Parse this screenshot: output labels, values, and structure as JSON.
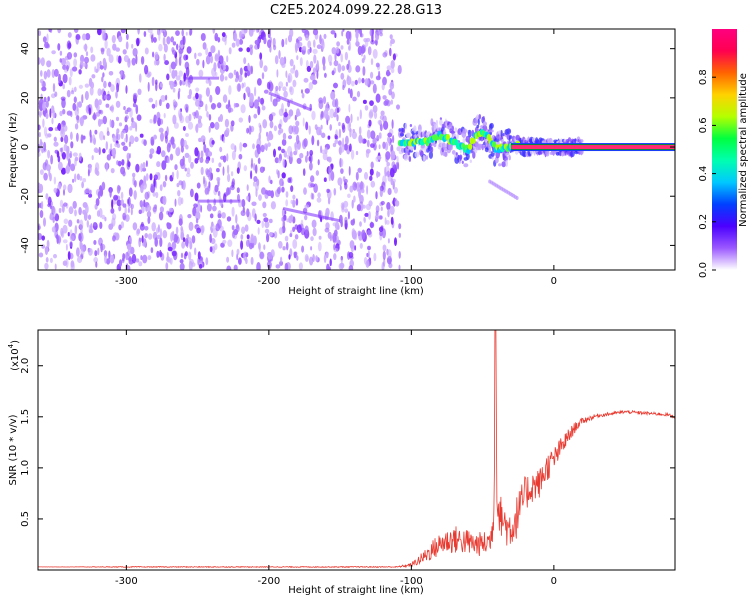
{
  "title": "C2E5.2024.099.22.28.G13",
  "chart_data": [
    {
      "type": "heatmap",
      "panel": "spectrogram",
      "title": "C2E5.2024.099.22.28.G13",
      "xlabel": "Height of straight line (km)",
      "ylabel": "Frequency (Hz)",
      "xlim": [
        -362,
        85
      ],
      "ylim": [
        -50,
        48
      ],
      "xticks": [
        -300,
        -200,
        -100,
        0
      ],
      "yticks": [
        -40,
        -20,
        0,
        20,
        40
      ],
      "xtick_labels": [
        "-300",
        "-200",
        "-100",
        "0"
      ],
      "ytick_labels": [
        "-40",
        "-20",
        "0",
        "20",
        "40"
      ],
      "noise_region_x": [
        -362,
        -108
      ],
      "signal": {
        "x": [
          -108,
          -100,
          -90,
          -80,
          -70,
          -60,
          -55,
          -50,
          -45,
          -40,
          -35,
          -30,
          -25,
          -20,
          -10,
          0,
          10,
          85
        ],
        "y": [
          2,
          2,
          2,
          5,
          2,
          -1,
          5,
          6,
          3,
          -1,
          0,
          0,
          1,
          0,
          0,
          0,
          0,
          0
        ]
      },
      "colorbar": {
        "label": "Normalized spectral amplitude",
        "range": [
          0,
          1
        ],
        "ticks": [
          0.0,
          0.2,
          0.4,
          0.6,
          0.8
        ],
        "tick_labels": [
          "0.0",
          "0.2",
          "0.4",
          "0.6",
          "0.8"
        ],
        "colors": [
          "#ffffff",
          "#9b59ff",
          "#4b00ff",
          "#0040ff",
          "#00c8ff",
          "#00ffb0",
          "#00ff40",
          "#b4ff00",
          "#ffd200",
          "#ff6400",
          "#ff0050",
          "#ff0080"
        ]
      },
      "colors": {
        "noise": "#7a28ff",
        "noise_light": "#c9a8ff",
        "core": "#ff2d6f",
        "core_edge": "#0a8a3a"
      }
    },
    {
      "type": "line",
      "panel": "snr",
      "xlabel": "Height of straight line (km)",
      "ylabel": "SNR (10 * v/v)",
      "y_scale_label": "(x10",
      "y_scale_exponent": "4",
      "xlim": [
        -362,
        85
      ],
      "ylim": [
        0,
        2.35
      ],
      "xticks": [
        -300,
        -200,
        -100,
        0
      ],
      "yticks": [
        0.5,
        1.0,
        1.5,
        2.0
      ],
      "xtick_labels": [
        "-300",
        "-200",
        "-100",
        "0"
      ],
      "ytick_labels": [
        "0.5",
        "1.0",
        "1.5",
        "2.0"
      ],
      "series": [
        {
          "name": "SNR",
          "color": "#e83a30",
          "x": [
            -362,
            -300,
            -200,
            -110,
            -100,
            -92,
            -85,
            -78,
            -70,
            -62,
            -55,
            -48,
            -44,
            -42,
            -41,
            -40,
            -39,
            -38,
            -36,
            -32,
            -28,
            -24,
            -20,
            -15,
            -10,
            -5,
            0,
            5,
            10,
            15,
            20,
            30,
            40,
            50,
            60,
            70,
            80,
            85
          ],
          "y": [
            0.03,
            0.03,
            0.03,
            0.03,
            0.05,
            0.12,
            0.2,
            0.27,
            0.3,
            0.28,
            0.25,
            0.26,
            0.3,
            0.6,
            2.35,
            0.85,
            0.6,
            0.55,
            0.5,
            0.4,
            0.45,
            0.6,
            0.75,
            0.82,
            0.85,
            1.0,
            1.08,
            1.2,
            1.3,
            1.4,
            1.46,
            1.51,
            1.53,
            1.55,
            1.54,
            1.53,
            1.52,
            1.5
          ]
        }
      ],
      "noise_amplitude": [
        0.0,
        0.004,
        0.004,
        0.005,
        0.02,
        0.06,
        0.1,
        0.12,
        0.14,
        0.13,
        0.12,
        0.12,
        0.15,
        0.2,
        0.0,
        0.2,
        0.2,
        0.2,
        0.2,
        0.2,
        0.22,
        0.2,
        0.18,
        0.16,
        0.15,
        0.14,
        0.12,
        0.1,
        0.08,
        0.05,
        0.03,
        0.02,
        0.015,
        0.015,
        0.015,
        0.015,
        0.015,
        0.015
      ]
    }
  ]
}
